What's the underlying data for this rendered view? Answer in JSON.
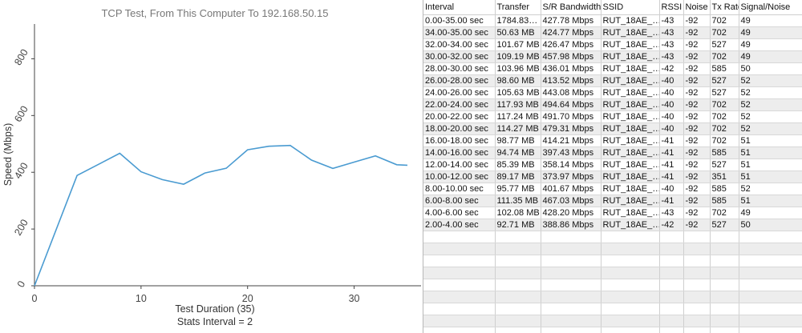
{
  "chart_data": {
    "type": "line",
    "title": "TCP Test,  From This Computer To 192.168.50.15",
    "xlabel": "Test Duration (35)",
    "xlabel_sub": "Stats Interval = 2",
    "ylabel": "Speed (Mbps)",
    "xlim": [
      0,
      35
    ],
    "ylim": [
      0,
      900
    ],
    "xticks": [
      "0",
      "10",
      "20",
      "30"
    ],
    "yticks": [
      "0",
      "200",
      "400",
      "600",
      "800"
    ],
    "grid": false,
    "legend": "none",
    "colors": {
      "line": "#4a9bd1"
    },
    "x": [
      0,
      4,
      8,
      10,
      12,
      14,
      16,
      18,
      20,
      22,
      24,
      26,
      28,
      30,
      32,
      34,
      35
    ],
    "y": [
      0,
      388.86,
      467.03,
      401.67,
      373.97,
      358.14,
      397.43,
      414.21,
      479.31,
      491.7,
      494.64,
      443.08,
      413.52,
      436.01,
      457.98,
      426.47,
      424.77
    ]
  },
  "table": {
    "columns": [
      "Interval",
      "Transfer",
      "S/R Bandwidth",
      "SSID",
      "RSSI",
      "Noise",
      "Tx Rate",
      "Signal/Noise"
    ],
    "rows": [
      [
        "0.00-35.00 sec",
        "1784.83…",
        "427.78 Mbps",
        "RUT_18AE_…",
        "-43",
        "-92",
        "702",
        "49"
      ],
      [
        "34.00-35.00 sec",
        "50.63 MB",
        "424.77 Mbps",
        "RUT_18AE_…",
        "-43",
        "-92",
        "702",
        "49"
      ],
      [
        "32.00-34.00 sec",
        "101.67 MB",
        "426.47 Mbps",
        "RUT_18AE_…",
        "-43",
        "-92",
        "527",
        "49"
      ],
      [
        "30.00-32.00 sec",
        "109.19 MB",
        "457.98 Mbps",
        "RUT_18AE_…",
        "-43",
        "-92",
        "702",
        "49"
      ],
      [
        "28.00-30.00 sec",
        "103.96 MB",
        "436.01 Mbps",
        "RUT_18AE_…",
        "-42",
        "-92",
        "585",
        "50"
      ],
      [
        "26.00-28.00 sec",
        "98.60 MB",
        "413.52 Mbps",
        "RUT_18AE_…",
        "-40",
        "-92",
        "527",
        "52"
      ],
      [
        "24.00-26.00 sec",
        "105.63 MB",
        "443.08 Mbps",
        "RUT_18AE_…",
        "-40",
        "-92",
        "527",
        "52"
      ],
      [
        "22.00-24.00 sec",
        "117.93 MB",
        "494.64 Mbps",
        "RUT_18AE_…",
        "-40",
        "-92",
        "702",
        "52"
      ],
      [
        "20.00-22.00 sec",
        "117.24 MB",
        "491.70 Mbps",
        "RUT_18AE_…",
        "-40",
        "-92",
        "702",
        "52"
      ],
      [
        "18.00-20.00 sec",
        "114.27 MB",
        "479.31 Mbps",
        "RUT_18AE_…",
        "-40",
        "-92",
        "702",
        "52"
      ],
      [
        "16.00-18.00 sec",
        "98.77 MB",
        "414.21 Mbps",
        "RUT_18AE_…",
        "-41",
        "-92",
        "702",
        "51"
      ],
      [
        "14.00-16.00 sec",
        "94.74 MB",
        "397.43 Mbps",
        "RUT_18AE_…",
        "-41",
        "-92",
        "585",
        "51"
      ],
      [
        "12.00-14.00 sec",
        "85.39 MB",
        "358.14 Mbps",
        "RUT_18AE_…",
        "-41",
        "-92",
        "527",
        "51"
      ],
      [
        "10.00-12.00 sec",
        "89.17 MB",
        "373.97 Mbps",
        "RUT_18AE_…",
        "-41",
        "-92",
        "351",
        "51"
      ],
      [
        "8.00-10.00 sec",
        "95.77 MB",
        "401.67 Mbps",
        "RUT_18AE_…",
        "-40",
        "-92",
        "585",
        "52"
      ],
      [
        "6.00-8.00 sec",
        "111.35 MB",
        "467.03 Mbps",
        "RUT_18AE_…",
        "-41",
        "-92",
        "585",
        "51"
      ],
      [
        "4.00-6.00 sec",
        "102.08 MB",
        "428.20 Mbps",
        "RUT_18AE_…",
        "-43",
        "-92",
        "702",
        "49"
      ],
      [
        "2.00-4.00 sec",
        "92.71 MB",
        "388.86 Mbps",
        "RUT_18AE_…",
        "-42",
        "-92",
        "527",
        "50"
      ]
    ]
  }
}
